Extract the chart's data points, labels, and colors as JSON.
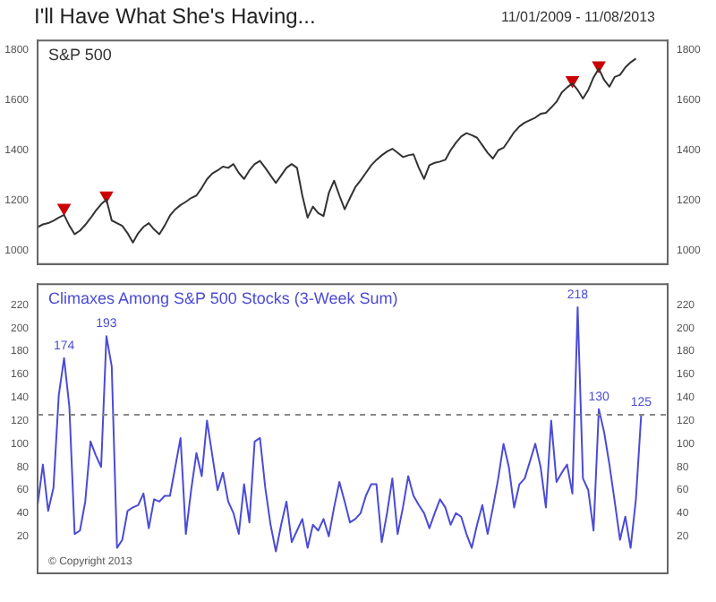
{
  "chart_data": [
    {
      "type": "line",
      "title": "I'll Have What She's Having...",
      "subtitle": "11/01/2009 - 11/08/2013",
      "tick_labels": "y",
      "categories": [
        null,
        null,
        null,
        null,
        null,
        null,
        null,
        null,
        null,
        null,
        null,
        null,
        null,
        null,
        null,
        null,
        null,
        null,
        null,
        null,
        null,
        null,
        null,
        null,
        null,
        null,
        null,
        null,
        null,
        null,
        null,
        null,
        null,
        null,
        null,
        null,
        null,
        null,
        null,
        null,
        null,
        null,
        null,
        null,
        null,
        null,
        null,
        null,
        null,
        null,
        null,
        null,
        null,
        null,
        null,
        null,
        null,
        null,
        null,
        null,
        null,
        null,
        null,
        null,
        null,
        null,
        null,
        null,
        null,
        null,
        null,
        null,
        null,
        null,
        null,
        null,
        null,
        null,
        null,
        null,
        null,
        null,
        null,
        null,
        null,
        null,
        null,
        null,
        null,
        null,
        null,
        null,
        null,
        null,
        null,
        null,
        null,
        null,
        null,
        null,
        null,
        null,
        null,
        null,
        null,
        null,
        null,
        null,
        null,
        null,
        null,
        null,
        null,
        null,
        null,
        null,
        null,
        null,
        null,
        null
      ],
      "ylim": [
        947,
        1837
      ],
      "yticks": [
        1000,
        1200,
        1400,
        1600,
        1800
      ],
      "y2lim": [
        947,
        1837
      ],
      "y2ticks": [
        1000,
        1200,
        1400,
        1600,
        1800
      ],
      "series": [
        {
          "name": "S&P 500",
          "color": "#333333",
          "values": [
            1094,
            1105,
            1110,
            1120,
            1132,
            1143,
            1100,
            1066,
            1080,
            1103,
            1130,
            1160,
            1185,
            1204,
            1121,
            1110,
            1099,
            1070,
            1033,
            1070,
            1095,
            1110,
            1085,
            1066,
            1100,
            1140,
            1165,
            1182,
            1195,
            1210,
            1220,
            1250,
            1285,
            1308,
            1320,
            1335,
            1330,
            1345,
            1310,
            1286,
            1320,
            1345,
            1358,
            1330,
            1300,
            1270,
            1300,
            1330,
            1345,
            1330,
            1220,
            1132,
            1176,
            1150,
            1138,
            1230,
            1279,
            1220,
            1165,
            1210,
            1253,
            1280,
            1310,
            1340,
            1362,
            1380,
            1395,
            1406,
            1390,
            1373,
            1380,
            1384,
            1330,
            1286,
            1341,
            1350,
            1355,
            1362,
            1400,
            1430,
            1455,
            1468,
            1460,
            1450,
            1420,
            1390,
            1367,
            1400,
            1410,
            1440,
            1472,
            1495,
            1510,
            1520,
            1530,
            1545,
            1549,
            1570,
            1593,
            1630,
            1650,
            1666,
            1640,
            1606,
            1640,
            1690,
            1725,
            1680,
            1653,
            1692,
            1700,
            1730,
            1750,
            1765,
            null,
            null,
            null,
            null,
            null,
            null
          ]
        },
        {
          "type": "scatter",
          "color": "#cc0000",
          "marker": "triangle",
          "values": [
            null,
            null,
            null,
            null,
            null,
            1171,
            null,
            null,
            null,
            null,
            null,
            null,
            null,
            1220,
            null,
            null,
            null,
            null,
            null,
            null,
            null,
            null,
            null,
            null,
            null,
            null,
            null,
            null,
            null,
            null,
            null,
            null,
            null,
            null,
            null,
            null,
            null,
            null,
            null,
            null,
            null,
            null,
            null,
            null,
            null,
            null,
            null,
            null,
            null,
            null,
            null,
            null,
            null,
            null,
            null,
            null,
            null,
            null,
            null,
            null,
            null,
            null,
            null,
            null,
            null,
            null,
            null,
            null,
            null,
            null,
            null,
            null,
            null,
            null,
            null,
            null,
            null,
            null,
            null,
            null,
            null,
            null,
            null,
            null,
            null,
            null,
            null,
            null,
            null,
            null,
            null,
            null,
            null,
            null,
            null,
            null,
            null,
            null,
            null,
            null,
            null,
            1679,
            null,
            null,
            null,
            null,
            1738,
            null,
            null,
            null,
            null,
            null,
            null,
            null,
            null,
            null,
            null,
            null,
            null,
            null
          ]
        }
      ]
    },
    {
      "type": "line",
      "tick_labels": "y",
      "annotations": [
        "© Copyright 2013"
      ],
      "categories": [
        null,
        null,
        null,
        null,
        null,
        null,
        null,
        null,
        null,
        null,
        null,
        null,
        null,
        null,
        null,
        null,
        null,
        null,
        null,
        null,
        null,
        null,
        null,
        null,
        null,
        null,
        null,
        null,
        null,
        null,
        null,
        null,
        null,
        null,
        null,
        null,
        null,
        null,
        null,
        null,
        null,
        null,
        null,
        null,
        null,
        null,
        null,
        null,
        null,
        null,
        null,
        null,
        null,
        null,
        null,
        null,
        null,
        null,
        null,
        null,
        null,
        null,
        null,
        null,
        null,
        null,
        null,
        null,
        null,
        null,
        null,
        null,
        null,
        null,
        null,
        null,
        null,
        null,
        null,
        null,
        null,
        null,
        null,
        null,
        null,
        null,
        null,
        null,
        null,
        null,
        null,
        null,
        null,
        null,
        null,
        null,
        null,
        null,
        null,
        null,
        null,
        null,
        null,
        null,
        null,
        null,
        null,
        null,
        null,
        null,
        null,
        null,
        null,
        null,
        null,
        null,
        null,
        null,
        null,
        null
      ],
      "ylim": [
        -12,
        238
      ],
      "yticks": [
        20,
        40,
        60,
        80,
        100,
        120,
        140,
        160,
        180,
        200,
        220
      ],
      "y2lim": [
        -12,
        238
      ],
      "y2ticks": [
        20,
        40,
        60,
        80,
        100,
        120,
        140,
        160,
        180,
        200,
        220
      ],
      "ref_lines": [
        {
          "axis": "y",
          "value": 125,
          "color": "#888888",
          "line_style": "dashed"
        }
      ],
      "series": [
        {
          "name": "Climaxes Among S&P 500 Stocks (3-Week Sum)",
          "color": "#4b4bd6",
          "values": [
            47,
            82,
            42,
            62,
            142,
            174,
            132,
            22,
            25,
            50,
            102,
            90,
            80,
            193,
            167,
            10,
            17,
            42,
            45,
            47,
            57,
            27,
            52,
            50,
            55,
            55,
            80,
            105,
            22,
            60,
            92,
            72,
            120,
            90,
            60,
            75,
            50,
            40,
            22,
            65,
            32,
            102,
            105,
            62,
            30,
            7,
            30,
            50,
            15,
            25,
            35,
            10,
            30,
            25,
            35,
            20,
            45,
            67,
            50,
            32,
            35,
            40,
            55,
            65,
            65,
            15,
            40,
            70,
            22,
            45,
            72,
            55,
            47,
            40,
            27,
            40,
            52,
            45,
            30,
            40,
            37,
            22,
            10,
            30,
            47,
            22,
            45,
            70,
            100,
            80,
            45,
            65,
            70,
            85,
            100,
            80,
            45,
            120,
            67,
            75,
            82,
            57,
            218,
            70,
            60,
            25,
            130,
            110,
            82,
            50,
            17,
            37,
            10,
            52,
            125,
            null,
            null,
            null,
            null,
            null
          ],
          "value_labels": [
            null,
            null,
            null,
            null,
            null,
            "174",
            null,
            null,
            null,
            null,
            null,
            null,
            null,
            "193",
            null,
            null,
            null,
            null,
            null,
            null,
            null,
            null,
            null,
            null,
            null,
            null,
            null,
            null,
            null,
            null,
            null,
            null,
            null,
            null,
            null,
            null,
            null,
            null,
            null,
            null,
            null,
            null,
            null,
            null,
            null,
            null,
            null,
            null,
            null,
            null,
            null,
            null,
            null,
            null,
            null,
            null,
            null,
            null,
            null,
            null,
            null,
            null,
            null,
            null,
            null,
            null,
            null,
            null,
            null,
            null,
            null,
            null,
            null,
            null,
            null,
            null,
            null,
            null,
            null,
            null,
            null,
            null,
            null,
            null,
            null,
            null,
            null,
            null,
            null,
            null,
            null,
            null,
            null,
            null,
            null,
            null,
            null,
            null,
            null,
            null,
            null,
            null,
            "218",
            null,
            null,
            null,
            "130",
            null,
            null,
            null,
            null,
            null,
            null,
            null,
            "125",
            null,
            null,
            null,
            null,
            null
          ]
        }
      ]
    }
  ]
}
